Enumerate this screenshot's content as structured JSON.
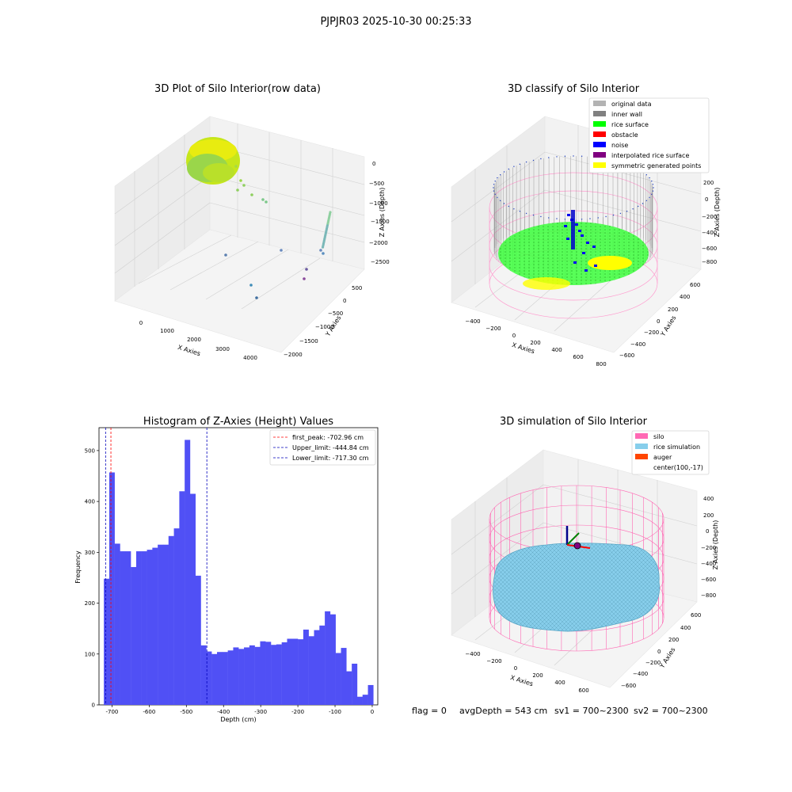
{
  "figure": {
    "suptitle": "PJPJR03 2025-10-30 00:25:33"
  },
  "footer": {
    "flag": "flag = 0",
    "avg_depth": "avgDepth = 543 cm",
    "sv1": "sv1 = 700~2300",
    "sv2": "sv2 = 700~2300"
  },
  "chart_data": [
    {
      "type": "scatter",
      "title": "3D Plot of Silo Interior(row data)",
      "xlabel": "X Axies",
      "ylabel": "Y Axies",
      "zlabel": "Z Axies (Depth)",
      "x_ticks": [
        "0",
        "1000",
        "2000",
        "3000",
        "4000"
      ],
      "y_ticks": [
        "500",
        "0",
        "−500",
        "−1000",
        "−1500",
        "−2000"
      ],
      "z_ticks": [
        "0",
        "−500",
        "−1000",
        "−1500",
        "−2000",
        "−2500"
      ]
    },
    {
      "type": "scatter",
      "title": "3D classify of Silo Interior",
      "xlabel": "X Axies",
      "ylabel": "Y Axies",
      "zlabel": "Z Axies (Depth)",
      "x_ticks": [
        "−400",
        "−200",
        "0",
        "200",
        "400",
        "600",
        "800"
      ],
      "y_ticks": [
        "600",
        "400",
        "200",
        "0",
        "−200",
        "−400",
        "−600"
      ],
      "z_ticks": [
        "200",
        "0",
        "−200",
        "−400",
        "−600",
        "−800"
      ],
      "legend": [
        {
          "label": "original data",
          "color": "#b3b3b3"
        },
        {
          "label": "inner wall",
          "color": "#808080"
        },
        {
          "label": "rice surface",
          "color": "#00ff00"
        },
        {
          "label": "obstacle",
          "color": "#ff0000"
        },
        {
          "label": "noise",
          "color": "#0000ff"
        },
        {
          "label": "interpolated rice surface",
          "color": "#800080"
        },
        {
          "label": "symmetric generated points",
          "color": "#ffff00"
        }
      ]
    },
    {
      "type": "bar",
      "title": "Histogram of Z-Axies (Height) Values",
      "xlabel": "Depth (cm)",
      "ylabel": "Frequency",
      "xlim": [
        -735,
        15
      ],
      "ylim": [
        0,
        545
      ],
      "x_ticks": [
        -700,
        -600,
        -500,
        -400,
        -300,
        -200,
        -100,
        0
      ],
      "y_ticks": [
        0,
        100,
        200,
        300,
        400,
        500
      ],
      "bin_start": -722,
      "bin_width": 14.5,
      "bar_color": "#5050f5",
      "values": [
        248,
        457,
        317,
        302,
        302,
        271,
        302,
        302,
        305,
        309,
        315,
        315,
        332,
        347,
        420,
        521,
        415,
        254,
        117,
        105,
        100,
        104,
        104,
        107,
        113,
        110,
        113,
        117,
        114,
        125,
        124,
        118,
        119,
        123,
        130,
        130,
        129,
        148,
        135,
        147,
        156,
        184,
        178,
        102,
        112,
        66,
        81,
        16,
        20,
        39
      ],
      "lines": [
        {
          "label": "first_peak: -702.96 cm",
          "value": -702.96,
          "color": "#ff0000"
        },
        {
          "label": "Upper_limit: -444.84 cm",
          "value": -444.84,
          "color": "#0000bb"
        },
        {
          "label": "Lower_limit: -717.30 cm",
          "value": -717.3,
          "color": "#0000bb"
        }
      ]
    },
    {
      "type": "area",
      "title": "3D simulation of Silo Interior",
      "xlabel": "X Axies",
      "ylabel": "Y Axies",
      "zlabel": "Z Axies (Depth)",
      "x_ticks": [
        "−400",
        "−200",
        "0",
        "200",
        "400",
        "600"
      ],
      "y_ticks": [
        "600",
        "400",
        "200",
        "0",
        "−200",
        "−400",
        "−600"
      ],
      "z_ticks": [
        "400",
        "200",
        "0",
        "−200",
        "−400",
        "−600",
        "−800"
      ],
      "legend": [
        {
          "label": "silo",
          "color": "#ff69b4"
        },
        {
          "label": "rice simulation",
          "color": "#87ceeb"
        },
        {
          "label": "auger",
          "color": "#ff4500"
        },
        {
          "label": "center(100,-17)",
          "color": ""
        }
      ]
    }
  ]
}
